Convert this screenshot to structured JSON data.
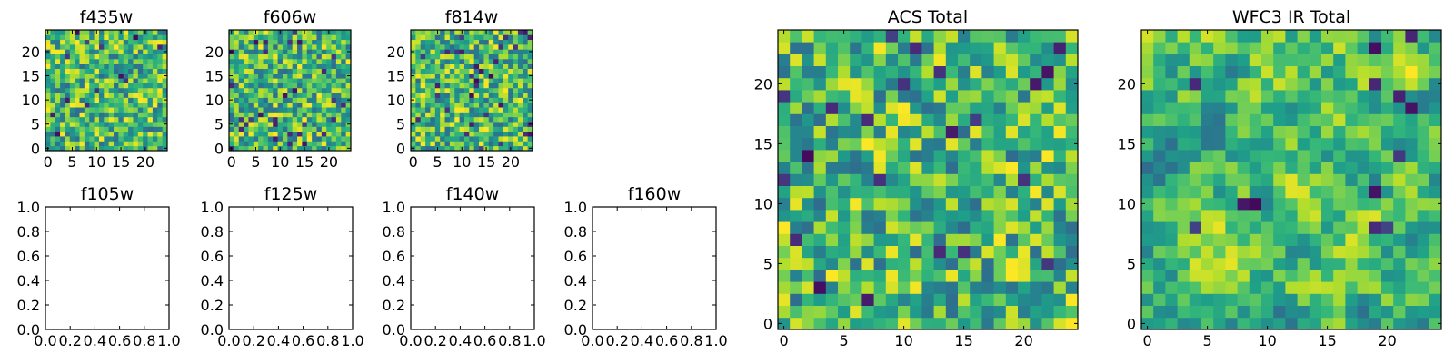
{
  "chart_data": [
    {
      "type": "heatmap",
      "title": "f435w",
      "grid_size": 25,
      "colormap": "viridis",
      "xlim": [
        -0.5,
        24.5
      ],
      "ylim": [
        -0.5,
        24.5
      ],
      "xticks": [
        0,
        5,
        10,
        15,
        20
      ],
      "yticks": [
        0,
        5,
        10,
        15,
        20
      ]
    },
    {
      "type": "heatmap",
      "title": "f606w",
      "grid_size": 25,
      "colormap": "viridis",
      "xlim": [
        -0.5,
        24.5
      ],
      "ylim": [
        -0.5,
        24.5
      ],
      "xticks": [
        0,
        5,
        10,
        15,
        20
      ],
      "yticks": [
        0,
        5,
        10,
        15,
        20
      ]
    },
    {
      "type": "heatmap",
      "title": "f814w",
      "grid_size": 25,
      "colormap": "viridis",
      "xlim": [
        -0.5,
        24.5
      ],
      "ylim": [
        -0.5,
        24.5
      ],
      "xticks": [
        0,
        5,
        10,
        15,
        20
      ],
      "yticks": [
        0,
        5,
        10,
        15,
        20
      ]
    },
    {
      "type": "scatter",
      "title": "f105w",
      "empty": true,
      "xlim": [
        0,
        1
      ],
      "ylim": [
        0,
        1
      ],
      "xticks": [
        "0.0",
        "0.2",
        "0.4",
        "0.6",
        "0.8",
        "1.0"
      ],
      "yticks": [
        "0.0",
        "0.2",
        "0.4",
        "0.6",
        "0.8",
        "1.0"
      ]
    },
    {
      "type": "scatter",
      "title": "f125w",
      "empty": true,
      "xlim": [
        0,
        1
      ],
      "ylim": [
        0,
        1
      ],
      "xticks": [
        "0.0",
        "0.2",
        "0.4",
        "0.6",
        "0.8",
        "1.0"
      ],
      "yticks": [
        "0.0",
        "0.2",
        "0.4",
        "0.6",
        "0.8",
        "1.0"
      ]
    },
    {
      "type": "scatter",
      "title": "f140w",
      "empty": true,
      "xlim": [
        0,
        1
      ],
      "ylim": [
        0,
        1
      ],
      "xticks": [
        "0.0",
        "0.2",
        "0.4",
        "0.6",
        "0.8",
        "1.0"
      ],
      "yticks": [
        "0.0",
        "0.2",
        "0.4",
        "0.6",
        "0.8",
        "1.0"
      ]
    },
    {
      "type": "scatter",
      "title": "f160w",
      "empty": true,
      "xlim": [
        0,
        1
      ],
      "ylim": [
        0,
        1
      ],
      "xticks": [
        "0.0",
        "0.2",
        "0.4",
        "0.6",
        "0.8",
        "1.0"
      ],
      "yticks": [
        "0.0",
        "0.2",
        "0.4",
        "0.6",
        "0.8",
        "1.0"
      ]
    },
    {
      "type": "heatmap",
      "title": "ACS Total",
      "grid_size": 25,
      "colormap": "viridis",
      "xlim": [
        -0.5,
        24.5
      ],
      "ylim": [
        -0.5,
        24.5
      ],
      "xticks": [
        0,
        5,
        10,
        15,
        20
      ],
      "yticks": [
        0,
        5,
        10,
        15,
        20
      ]
    },
    {
      "type": "heatmap",
      "title": "WFC3 IR Total",
      "grid_size": 25,
      "colormap": "viridis",
      "xlim": [
        -0.5,
        24.5
      ],
      "ylim": [
        -0.5,
        24.5
      ],
      "xticks": [
        0,
        5,
        10,
        15,
        20
      ],
      "yticks": [
        0,
        5,
        10,
        15,
        20
      ]
    }
  ]
}
